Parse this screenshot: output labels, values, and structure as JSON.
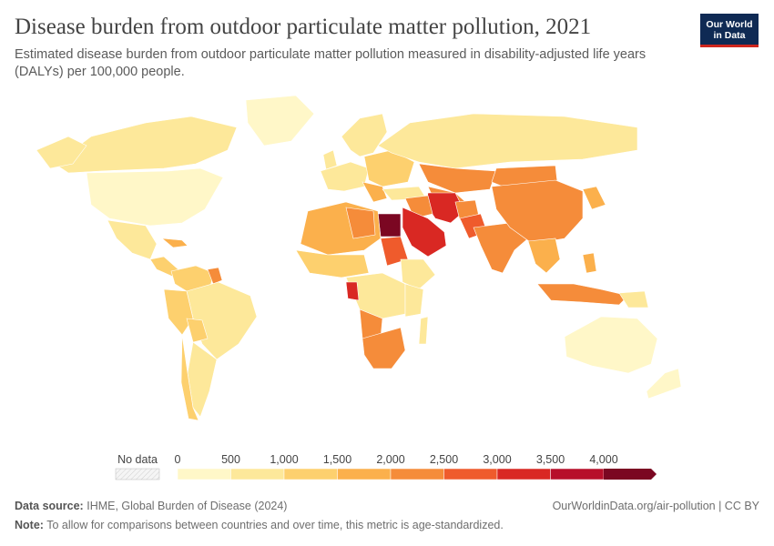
{
  "header": {
    "title": "Disease burden from outdoor particulate matter pollution, 2021",
    "subtitle": "Estimated disease burden from outdoor particulate matter pollution measured in disability-adjusted life years (DALYs) per 100,000 people.",
    "logo_line1": "Our World",
    "logo_line2": "in Data"
  },
  "legend": {
    "no_data_label": "No data",
    "bins": [
      {
        "label": "0",
        "color": "#fff7c8"
      },
      {
        "label": "500",
        "color": "#fde89a"
      },
      {
        "label": "1,000",
        "color": "#fdd06e"
      },
      {
        "label": "1,500",
        "color": "#fbb04c"
      },
      {
        "label": "2,000",
        "color": "#f58c3a"
      },
      {
        "label": "2,500",
        "color": "#ef5b2c"
      },
      {
        "label": "3,000",
        "color": "#d92823"
      },
      {
        "label": "3,500",
        "color": "#b70f2a"
      },
      {
        "label": "4,000",
        "color": "#7b0722"
      }
    ]
  },
  "colors": {
    "c0": "#fff7c8",
    "c1": "#fde89a",
    "c2": "#fdd06e",
    "c3": "#fbb04c",
    "c4": "#f58c3a",
    "c5": "#ef5b2c",
    "c6": "#d92823",
    "c7": "#b70f2a",
    "c8": "#7b0722"
  },
  "footer": {
    "source_label": "Data source:",
    "source_text": "IHME, Global Burden of Disease (2024)",
    "link_text": "OurWorldinData.org/air-pollution | CC BY",
    "note_label": "Note:",
    "note_text": "To allow for comparisons between countries and over time, this metric is age-standardized."
  }
}
